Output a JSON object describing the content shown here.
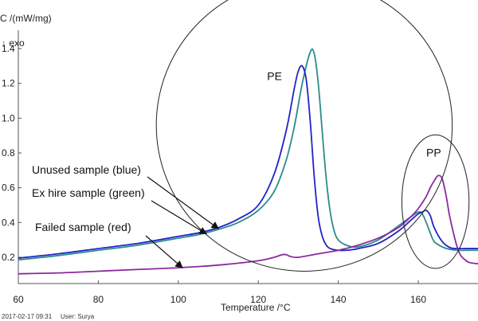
{
  "chart_data": {
    "type": "line",
    "ylabel": "C /(mW/mg)",
    "exo_label": "↓ exo",
    "xlabel": "Temperature /°C",
    "xlim": [
      60,
      178
    ],
    "ylim": [
      0.09,
      1.52
    ],
    "x_ticks": [
      60,
      80,
      100,
      120,
      140,
      160
    ],
    "y_ticks": [
      {
        "value": 0.2,
        "label": "0.2"
      },
      {
        "value": 0.4,
        "label": "0.4"
      },
      {
        "value": 0.6,
        "label": "0.6"
      },
      {
        "value": 0.8,
        "label": "0.8"
      },
      {
        "value": 1.0,
        "label": "1.0"
      },
      {
        "value": 1.2,
        "label": "1.2"
      },
      {
        "value": 1.4,
        "label": "1.4"
      }
    ],
    "series": [
      {
        "color": "#2a8b8b",
        "x": [
          60,
          70,
          80,
          90,
          100,
          105,
          110,
          115,
          120,
          124,
          127,
          129,
          131,
          133,
          134,
          135,
          136,
          137,
          138,
          139,
          140,
          142,
          145,
          150,
          155,
          158,
          160,
          161,
          162,
          163,
          164,
          166,
          168,
          170,
          172,
          174,
          178
        ],
        "y": [
          0.185,
          0.21,
          0.24,
          0.27,
          0.31,
          0.33,
          0.36,
          0.4,
          0.47,
          0.58,
          0.76,
          0.95,
          1.2,
          1.38,
          1.37,
          1.2,
          0.92,
          0.65,
          0.46,
          0.35,
          0.3,
          0.27,
          0.26,
          0.3,
          0.38,
          0.43,
          0.46,
          0.45,
          0.4,
          0.34,
          0.29,
          0.26,
          0.245,
          0.24,
          0.24,
          0.24,
          0.24
        ]
      },
      {
        "color": "#2222c8",
        "x": [
          60,
          70,
          80,
          90,
          100,
          105,
          110,
          115,
          120,
          124,
          127,
          129,
          130,
          131,
          132,
          133,
          134,
          135,
          136,
          137,
          138,
          140,
          142,
          145,
          150,
          155,
          158,
          160,
          161,
          162,
          163,
          164,
          166,
          168,
          170,
          172,
          174,
          178
        ],
        "y": [
          0.195,
          0.22,
          0.25,
          0.28,
          0.32,
          0.34,
          0.37,
          0.42,
          0.5,
          0.68,
          0.93,
          1.17,
          1.27,
          1.3,
          1.22,
          0.98,
          0.66,
          0.43,
          0.32,
          0.27,
          0.25,
          0.24,
          0.24,
          0.25,
          0.28,
          0.35,
          0.41,
          0.45,
          0.46,
          0.47,
          0.44,
          0.37,
          0.29,
          0.255,
          0.25,
          0.25,
          0.25,
          0.25
        ]
      },
      {
        "color": "#8b2aa0",
        "x": [
          60,
          70,
          80,
          90,
          100,
          110,
          120,
          124,
          126,
          127,
          128,
          130,
          135,
          140,
          145,
          150,
          155,
          158,
          160,
          162,
          163,
          164,
          165,
          166,
          167,
          168,
          170,
          172,
          174,
          178
        ],
        "y": [
          0.105,
          0.11,
          0.12,
          0.13,
          0.14,
          0.155,
          0.18,
          0.2,
          0.215,
          0.215,
          0.205,
          0.2,
          0.22,
          0.24,
          0.27,
          0.31,
          0.37,
          0.43,
          0.48,
          0.55,
          0.6,
          0.64,
          0.67,
          0.65,
          0.55,
          0.42,
          0.24,
          0.18,
          0.165,
          0.16
        ]
      }
    ],
    "annotations": [
      {
        "text": "Unused sample (blue)",
        "target": [
          110,
          0.365
        ]
      },
      {
        "text": "Ex hire sample (green)",
        "target": [
          107,
          0.335
        ]
      },
      {
        "text": "Failed sample (red)",
        "target": [
          101,
          0.14
        ]
      }
    ],
    "peak_labels": [
      {
        "text": "PE",
        "center": [
          131.5,
          0.96
        ],
        "rx": 37,
        "ry": 1.05,
        "label_at": [
          122.2,
          1.22
        ]
      },
      {
        "text": "PP",
        "center": [
          164.3,
          0.52
        ],
        "rx": 8.4,
        "ry": 0.48,
        "label_at": [
          162,
          0.78
        ]
      }
    ],
    "footer": {
      "timestamp": "2017-02-17 09:31",
      "user": "User: Surya"
    }
  }
}
